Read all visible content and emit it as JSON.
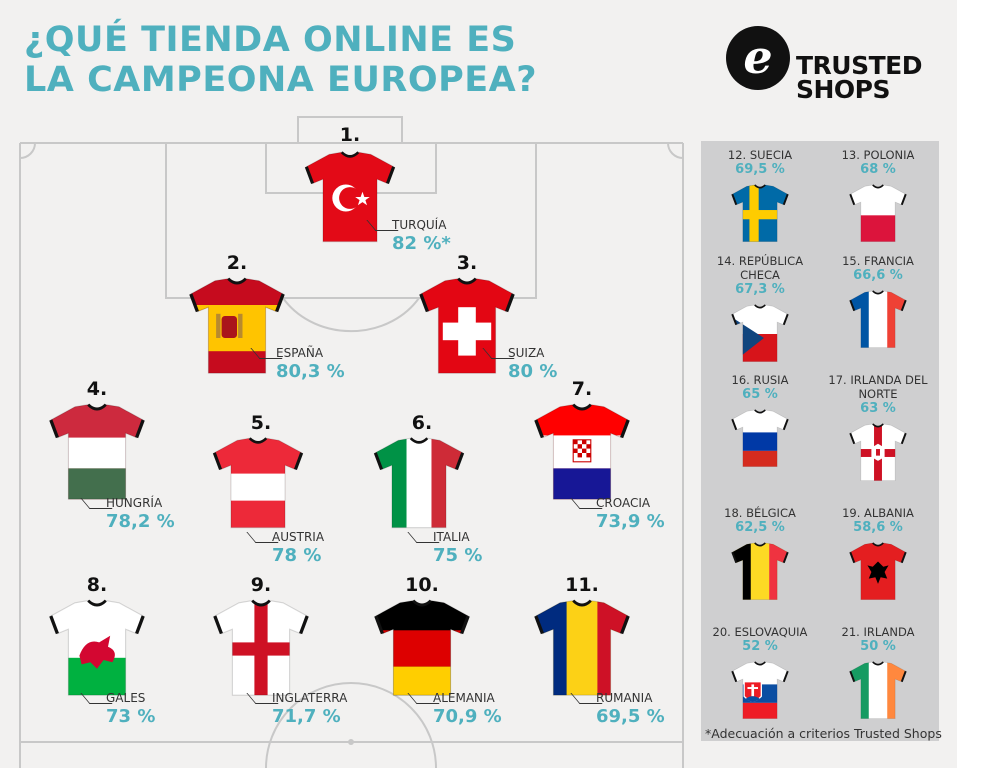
{
  "title_line1": "¿QUÉ TIENDA ONLINE ES",
  "title_line2": "LA CAMPEONA EUROPEA?",
  "logo": {
    "letter": "e",
    "line1": "TRUSTED",
    "line2": "SHOPS"
  },
  "footnote": "*Adecuación a criterios Trusted Shops",
  "colors": {
    "accent": "#4fb0be",
    "background": "#f2f1f0",
    "panel": "#cfcfd0"
  },
  "players": [
    {
      "num": "1.",
      "name": "TURQUÍA",
      "pct": "82 %*",
      "flag": "turkey"
    },
    {
      "num": "2.",
      "name": "ESPAÑA",
      "pct": "80,3 %",
      "flag": "spain"
    },
    {
      "num": "3.",
      "name": "SUIZA",
      "pct": "80 %",
      "flag": "switzerland"
    },
    {
      "num": "4.",
      "name": "HUNGRÍA",
      "pct": "78,2 %",
      "flag": "hungary"
    },
    {
      "num": "5.",
      "name": "AUSTRIA",
      "pct": "78 %",
      "flag": "austria"
    },
    {
      "num": "6.",
      "name": "ITALIA",
      "pct": "75 %",
      "flag": "italy"
    },
    {
      "num": "7.",
      "name": "CROACIA",
      "pct": "73,9 %",
      "flag": "croatia"
    },
    {
      "num": "8.",
      "name": "GALES",
      "pct": "73 %",
      "flag": "wales"
    },
    {
      "num": "9.",
      "name": "INGLATERRA",
      "pct": "71,7 %",
      "flag": "england"
    },
    {
      "num": "10.",
      "name": "ALEMANIA",
      "pct": "70,9 %",
      "flag": "germany"
    },
    {
      "num": "11.",
      "name": "RUMANIA",
      "pct": "69,5 %",
      "flag": "romania"
    }
  ],
  "bench": [
    {
      "name": "12. SUECIA",
      "pct": "69,5 %",
      "flag": "sweden"
    },
    {
      "name": "13. POLONIA",
      "pct": "68 %",
      "flag": "poland"
    },
    {
      "name": "14. REPÚBLICA CHECA",
      "pct": "67,3 %",
      "flag": "czech"
    },
    {
      "name": "15. FRANCIA",
      "pct": "66,6 %",
      "flag": "france"
    },
    {
      "name": "16. RUSIA",
      "pct": "65 %",
      "flag": "russia"
    },
    {
      "name": "17. IRLANDA DEL NORTE",
      "pct": "63 %",
      "flag": "nireland"
    },
    {
      "name": "18. BÉLGICA",
      "pct": "62,5 %",
      "flag": "belgium"
    },
    {
      "name": "19. ALBANIA",
      "pct": "58,6 %",
      "flag": "albania"
    },
    {
      "name": "20. ESLOVAQUIA",
      "pct": "52 %",
      "flag": "slovakia"
    },
    {
      "name": "21. IRLANDA",
      "pct": "50 %",
      "flag": "ireland"
    }
  ]
}
